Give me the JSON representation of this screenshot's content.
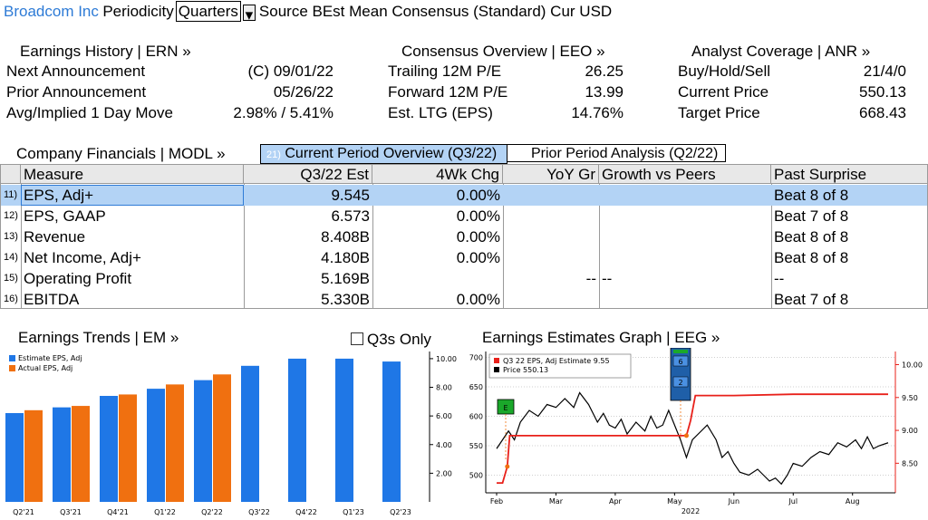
{
  "topbar": {
    "company": "Broadcom Inc",
    "periodicity_label": "Periodicity",
    "periodicity_value": "Quarters",
    "source": "Source BEst Mean Consensus (Standard) Cur USD"
  },
  "earnings_history": {
    "title": "Earnings History | ERN »",
    "rows": [
      {
        "label": "Next Announcement",
        "value": "(C)  09/01/22"
      },
      {
        "label": "Prior Announcement",
        "value": "05/26/22"
      },
      {
        "label": "Avg/Implied 1 Day Move",
        "value": "2.98% / 5.41%"
      }
    ]
  },
  "consensus": {
    "title": "Consensus Overview | EEO »",
    "rows": [
      {
        "label": "Trailing 12M P/E",
        "value": "26.25"
      },
      {
        "label": "Forward 12M P/E",
        "value": "13.99"
      },
      {
        "label": "Est. LTG (EPS)",
        "value": "14.76%"
      }
    ]
  },
  "analyst": {
    "title": "Analyst Coverage | ANR »",
    "rows": [
      {
        "label": "Buy/Hold/Sell",
        "value": "21/4/0"
      },
      {
        "label": "Current Price",
        "value": "550.13"
      },
      {
        "label": "Target Price",
        "value": "668.43"
      }
    ]
  },
  "financials": {
    "title": "Company Financials | MODL »",
    "tab_current_num": "21)",
    "tab_current": "Current Period Overview (Q3/22)",
    "tab_prior": "Prior Period Analysis (Q2/22)",
    "columns": [
      "Measure",
      "Q3/22 Est",
      "4Wk Chg",
      "YoY Gr",
      "Growth vs Peers",
      "Past Surprise"
    ],
    "rows": [
      {
        "num": "11)",
        "measure": "EPS, Adj+",
        "est": "9.545",
        "chg": "0.00%",
        "yoy": "",
        "peers": "",
        "surprise": "Beat 8 of 8"
      },
      {
        "num": "12)",
        "measure": "EPS, GAAP",
        "est": "6.573",
        "chg": "0.00%",
        "yoy": "",
        "peers": "",
        "surprise": "Beat 7 of 8"
      },
      {
        "num": "13)",
        "measure": "Revenue",
        "est": "8.408B",
        "chg": "0.00%",
        "yoy": "",
        "peers": "",
        "surprise": "Beat 8 of 8"
      },
      {
        "num": "14)",
        "measure": "Net Income, Adj+",
        "est": "4.180B",
        "chg": "0.00%",
        "yoy": "",
        "peers": "",
        "surprise": "Beat 8 of 8"
      },
      {
        "num": "15)",
        "measure": "Operating Profit",
        "est": "5.169B",
        "chg": "",
        "yoy": "--",
        "peers": "--",
        "surprise": "--"
      },
      {
        "num": "16)",
        "measure": "EBITDA",
        "est": "5.330B",
        "chg": "0.00%",
        "yoy": "",
        "peers": "",
        "surprise": "Beat 7 of 8"
      }
    ]
  },
  "earnings_trends": {
    "title": "Earnings Trends | EM »",
    "q3s_only": "Q3s Only"
  },
  "estimates_graph": {
    "title": "Earnings Estimates Graph | EEG »",
    "legend_line1": "Q3 22 EPS, Adj Estimate  9.55",
    "legend_line2": "Price                              550.13",
    "year_label": "2022",
    "marker_e": "E",
    "marker_6": "6",
    "marker_2": "2"
  },
  "chart_data": [
    {
      "type": "bar",
      "categories": [
        "Q2'21",
        "Q3'21",
        "Q4'21",
        "Q1'22",
        "Q2'22",
        "Q3'22",
        "Q4'22",
        "Q1'23",
        "Q2'23"
      ],
      "series": [
        {
          "name": "Estimate EPS, Adj",
          "color": "#1f77e6",
          "values": [
            6.2,
            6.6,
            7.4,
            7.9,
            8.5,
            9.5,
            10.0,
            10.0,
            9.8
          ]
        },
        {
          "name": "Actual EPS, Adj",
          "color": "#f07010",
          "values": [
            6.4,
            6.7,
            7.5,
            8.2,
            8.9,
            null,
            null,
            null,
            null
          ]
        }
      ],
      "yticks": [
        "2.00",
        "4.00",
        "6.00",
        "8.00",
        "10.00"
      ],
      "ylim": [
        0,
        10.5
      ]
    },
    {
      "type": "line",
      "x_ticks": [
        "Feb",
        "Mar",
        "Apr",
        "May",
        "Jun",
        "Jul",
        "Aug"
      ],
      "left_ticks": [
        "500",
        "550",
        "600",
        "650",
        "700"
      ],
      "right_ticks": [
        "8.50",
        "9.00",
        "9.50",
        "10.00"
      ],
      "series": [
        {
          "name": "Q3 22 EPS, Adj Estimate",
          "color": "#e8201a",
          "axis": "right",
          "points": [
            [
              0,
              8.2
            ],
            [
              0.1,
              8.2
            ],
            [
              0.18,
              8.45
            ],
            [
              0.22,
              8.92
            ],
            [
              1.0,
              8.92
            ],
            [
              2.0,
              8.92
            ],
            [
              3.2,
              8.92
            ],
            [
              3.27,
              9.15
            ],
            [
              3.35,
              9.53
            ],
            [
              4.0,
              9.53
            ],
            [
              5.0,
              9.55
            ],
            [
              6.6,
              9.55
            ]
          ]
        },
        {
          "name": "Price",
          "color": "#000000",
          "axis": "left",
          "points": [
            [
              0,
              545
            ],
            [
              0.1,
              560
            ],
            [
              0.2,
              575
            ],
            [
              0.3,
              560
            ],
            [
              0.4,
              590
            ],
            [
              0.55,
              610
            ],
            [
              0.7,
              600
            ],
            [
              0.85,
              620
            ],
            [
              1.0,
              615
            ],
            [
              1.15,
              630
            ],
            [
              1.3,
              615
            ],
            [
              1.4,
              640
            ],
            [
              1.55,
              620
            ],
            [
              1.7,
              590
            ],
            [
              1.8,
              605
            ],
            [
              1.9,
              585
            ],
            [
              2.0,
              580
            ],
            [
              2.1,
              595
            ],
            [
              2.2,
              570
            ],
            [
              2.35,
              590
            ],
            [
              2.5,
              575
            ],
            [
              2.6,
              600
            ],
            [
              2.7,
              580
            ],
            [
              2.8,
              585
            ],
            [
              2.9,
              610
            ],
            [
              3.0,
              585
            ],
            [
              3.1,
              560
            ],
            [
              3.2,
              530
            ],
            [
              3.3,
              560
            ],
            [
              3.45,
              575
            ],
            [
              3.55,
              585
            ],
            [
              3.7,
              560
            ],
            [
              3.8,
              530
            ],
            [
              3.9,
              540
            ],
            [
              4.0,
              520
            ],
            [
              4.1,
              505
            ],
            [
              4.25,
              500
            ],
            [
              4.4,
              510
            ],
            [
              4.5,
              500
            ],
            [
              4.6,
              490
            ],
            [
              4.7,
              495
            ],
            [
              4.8,
              485
            ],
            [
              4.9,
              500
            ],
            [
              5.0,
              520
            ],
            [
              5.15,
              515
            ],
            [
              5.3,
              530
            ],
            [
              5.45,
              540
            ],
            [
              5.6,
              535
            ],
            [
              5.75,
              555
            ],
            [
              5.9,
              548
            ],
            [
              6.05,
              560
            ],
            [
              6.15,
              545
            ],
            [
              6.25,
              565
            ],
            [
              6.35,
              545
            ],
            [
              6.45,
              550
            ],
            [
              6.6,
              555
            ]
          ]
        }
      ]
    }
  ]
}
